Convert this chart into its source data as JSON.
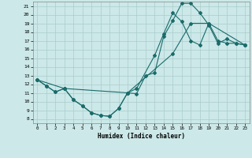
{
  "title": "",
  "xlabel": "Humidex (Indice chaleur)",
  "bg_color": "#cce8e8",
  "line_color": "#1a6b6b",
  "grid_color": "#aacccc",
  "xlim": [
    -0.5,
    23.5
  ],
  "ylim": [
    7.5,
    21.5
  ],
  "xticks": [
    0,
    1,
    2,
    3,
    4,
    5,
    6,
    7,
    8,
    9,
    10,
    11,
    12,
    13,
    14,
    15,
    16,
    17,
    18,
    19,
    20,
    21,
    22,
    23
  ],
  "yticks": [
    8,
    9,
    10,
    11,
    12,
    13,
    14,
    15,
    16,
    17,
    18,
    19,
    20,
    21
  ],
  "line1_x": [
    0,
    1,
    2,
    3,
    4,
    5,
    6,
    7,
    8,
    9,
    10,
    11,
    12,
    13,
    14,
    15,
    16,
    17,
    18,
    19,
    20,
    21,
    22,
    23
  ],
  "line1_y": [
    12.5,
    11.8,
    11.1,
    11.5,
    10.2,
    9.5,
    8.7,
    8.4,
    8.3,
    9.2,
    11.0,
    10.9,
    13.0,
    13.3,
    17.5,
    19.3,
    21.3,
    21.3,
    20.2,
    18.8,
    16.7,
    17.2,
    16.7,
    16.5
  ],
  "line2_x": [
    0,
    1,
    2,
    3,
    4,
    5,
    6,
    7,
    8,
    9,
    10,
    11,
    13,
    14,
    15,
    16,
    17,
    18,
    19,
    20,
    21,
    22,
    23
  ],
  "line2_y": [
    12.5,
    11.8,
    11.1,
    11.5,
    10.2,
    9.5,
    8.7,
    8.4,
    8.3,
    9.2,
    11.0,
    11.5,
    15.3,
    17.8,
    20.2,
    19.2,
    17.0,
    16.5,
    19.0,
    17.0,
    16.7,
    16.7,
    16.5
  ],
  "line3_x": [
    0,
    3,
    10,
    15,
    17,
    19,
    23
  ],
  "line3_y": [
    12.5,
    11.5,
    11.0,
    15.5,
    19.0,
    19.0,
    16.5
  ]
}
